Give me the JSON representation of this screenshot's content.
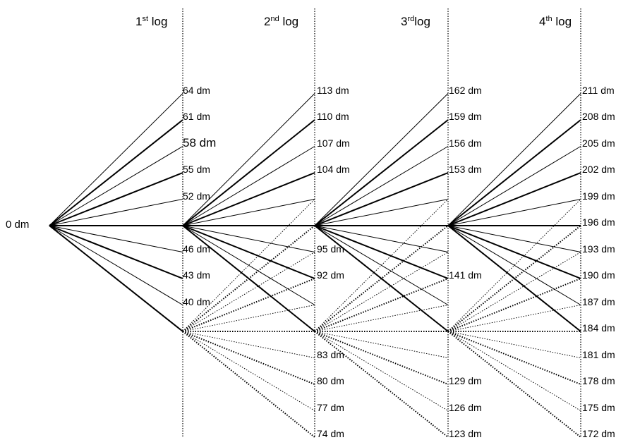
{
  "headers": [
    {
      "base": "1",
      "sup": "st",
      "rest": " log"
    },
    {
      "base": "2",
      "sup": "nd",
      "rest": " log"
    },
    {
      "base": "3",
      "sup": "rd",
      "rest": "log"
    },
    {
      "base": "4",
      "sup": "th",
      "rest": " log"
    }
  ],
  "root_label": "0 dm",
  "log1_labels": [
    "64 dm",
    "61 dm",
    "58 dm",
    "55 dm",
    "52 dm",
    "46 dm",
    "43 dm",
    "40 dm"
  ],
  "log2_labels": [
    "113 dm",
    "110 dm",
    "107 dm",
    "104 dm",
    "95 dm",
    "92 dm",
    "83 dm",
    "80 dm",
    "77 dm",
    "74 dm"
  ],
  "log3_labels": [
    "162 dm",
    "159 dm",
    "156 dm",
    "153 dm",
    "141 dm",
    "129 dm",
    "126 dm",
    "123 dm"
  ],
  "log4_labels": [
    "211 dm",
    "208 dm",
    "205 dm",
    "202 dm",
    "199 dm",
    "196 dm",
    "193 dm",
    "190 dm",
    "187 dm",
    "184 dm",
    "181 dm",
    "178 dm",
    "175 dm",
    "172 dm"
  ]
}
